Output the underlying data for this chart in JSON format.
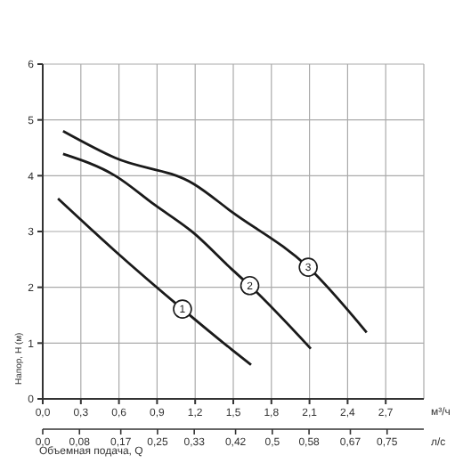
{
  "chart_data": {
    "type": "line",
    "ylabel": "Напор, H (м)",
    "xlabel": "м³/ч",
    "x2label": "л/с",
    "xlim": [
      0,
      3.0
    ],
    "xticks": [
      {
        "value": 0,
        "label": "0,0"
      },
      {
        "value": 0.3,
        "label": "0,3"
      },
      {
        "value": 0.6,
        "label": "0,6"
      },
      {
        "value": 0.9,
        "label": "0,9"
      },
      {
        "value": 1.2,
        "label": "1,2"
      },
      {
        "value": 1.5,
        "label": "1,5"
      },
      {
        "value": 1.8,
        "label": "1,8"
      },
      {
        "value": 2.1,
        "label": "2,1"
      },
      {
        "value": 2.4,
        "label": "2,4"
      },
      {
        "value": 2.7,
        "label": "2,7"
      }
    ],
    "x2lim": [
      0,
      0.83
    ],
    "x2ticks": [
      {
        "value": 0,
        "label": "0,0"
      },
      {
        "value": 0.08,
        "label": "0,08"
      },
      {
        "value": 0.17,
        "label": "0,17"
      },
      {
        "value": 0.25,
        "label": "0,25"
      },
      {
        "value": 0.33,
        "label": "0,33"
      },
      {
        "value": 0.42,
        "label": "0,42"
      },
      {
        "value": 0.5,
        "label": "0,5"
      },
      {
        "value": 0.58,
        "label": "0,58"
      },
      {
        "value": 0.67,
        "label": "0,67"
      },
      {
        "value": 0.75,
        "label": "0,75"
      }
    ],
    "ylim": [
      0,
      6
    ],
    "yticks": [
      0,
      1,
      2,
      3,
      4,
      5,
      6
    ],
    "grid": true,
    "marker": "none",
    "line_style": "solid",
    "series": [
      {
        "color": "#1a1a1a",
        "x": [
          0.12,
          0.57,
          1.1,
          1.49,
          1.64
        ],
        "values": [
          3.59,
          2.65,
          1.61,
          0.88,
          0.61
        ]
      },
      {
        "color": "#1a1a1a",
        "x": [
          0.16,
          0.57,
          0.88,
          1.19,
          1.49,
          1.63,
          2.11
        ],
        "values": [
          4.39,
          4.0,
          3.48,
          2.97,
          2.32,
          2.03,
          0.9
        ]
      },
      {
        "color": "#1a1a1a",
        "x": [
          0.16,
          0.57,
          1.19,
          1.49,
          2.09,
          2.55
        ],
        "values": [
          4.8,
          4.32,
          3.85,
          3.35,
          2.36,
          1.19
        ]
      }
    ],
    "annotations": [
      {
        "text": "1",
        "x": 1.1,
        "y": 1.61
      },
      {
        "text": "2",
        "x": 1.63,
        "y": 2.03
      },
      {
        "text": "3",
        "x": 2.09,
        "y": 2.36
      },
      "Объемная подача, Q"
    ]
  }
}
